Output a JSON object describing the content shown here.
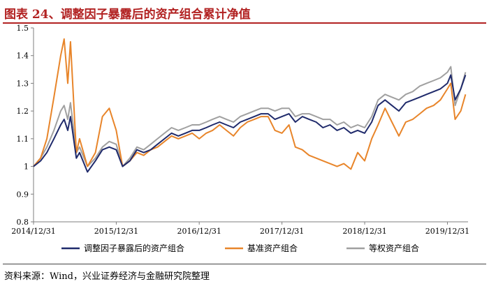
{
  "title": "图表 24、调整因子暴露后的资产组合累计净值",
  "source": "资料来源：Wind，兴业证券经济与金融研究院整理",
  "chart_data": {
    "type": "line",
    "ylim": [
      0.8,
      1.5
    ],
    "yticks": [
      "0.8",
      "0.9",
      "1",
      "1.1",
      "1.2",
      "1.3",
      "1.4",
      "1.5"
    ],
    "xlim": [
      "2014-12-31",
      "2020-03-31"
    ],
    "xticks": [
      {
        "date": "2014-12-31",
        "label": "2014/12/31"
      },
      {
        "date": "2015-12-31",
        "label": "2015/12/31"
      },
      {
        "date": "2016-12-31",
        "label": "2016/12/31"
      },
      {
        "date": "2017-12-31",
        "label": "2017/12/31"
      },
      {
        "date": "2018-12-31",
        "label": "2018/12/31"
      },
      {
        "date": "2019-12-31",
        "label": "2019/12/31"
      }
    ],
    "grid": false,
    "legend_position": "bottom",
    "series": [
      {
        "name": "调整因子暴露后的资产组合",
        "color": "#1f2a6b",
        "x": [
          "2014-12-31",
          "2015-01-31",
          "2015-02-28",
          "2015-03-31",
          "2015-04-30",
          "2015-05-15",
          "2015-05-31",
          "2015-06-12",
          "2015-07-08",
          "2015-07-22",
          "2015-08-26",
          "2015-09-30",
          "2015-10-31",
          "2015-11-30",
          "2015-12-31",
          "2016-01-28",
          "2016-02-29",
          "2016-03-31",
          "2016-04-30",
          "2016-05-31",
          "2016-06-30",
          "2016-07-31",
          "2016-08-31",
          "2016-09-30",
          "2016-10-31",
          "2016-11-30",
          "2016-12-31",
          "2017-01-31",
          "2017-02-28",
          "2017-03-31",
          "2017-04-30",
          "2017-05-31",
          "2017-06-30",
          "2017-07-31",
          "2017-08-31",
          "2017-09-30",
          "2017-10-31",
          "2017-11-30",
          "2017-12-31",
          "2018-01-31",
          "2018-02-28",
          "2018-03-31",
          "2018-04-30",
          "2018-05-31",
          "2018-06-30",
          "2018-07-31",
          "2018-08-31",
          "2018-09-30",
          "2018-10-31",
          "2018-11-30",
          "2018-12-31",
          "2019-01-31",
          "2019-02-28",
          "2019-03-31",
          "2019-04-30",
          "2019-05-31",
          "2019-06-30",
          "2019-07-31",
          "2019-08-31",
          "2019-09-30",
          "2019-10-31",
          "2019-11-30",
          "2019-12-31",
          "2020-01-15",
          "2020-02-03",
          "2020-02-28",
          "2020-03-20"
        ],
        "values": [
          1.0,
          1.02,
          1.05,
          1.1,
          1.15,
          1.17,
          1.13,
          1.18,
          1.03,
          1.05,
          0.98,
          1.02,
          1.06,
          1.07,
          1.06,
          1.0,
          1.02,
          1.06,
          1.05,
          1.06,
          1.08,
          1.1,
          1.12,
          1.11,
          1.12,
          1.13,
          1.13,
          1.14,
          1.15,
          1.16,
          1.15,
          1.14,
          1.16,
          1.17,
          1.18,
          1.19,
          1.19,
          1.17,
          1.18,
          1.19,
          1.16,
          1.18,
          1.17,
          1.16,
          1.14,
          1.15,
          1.13,
          1.14,
          1.12,
          1.13,
          1.12,
          1.16,
          1.22,
          1.24,
          1.22,
          1.2,
          1.23,
          1.24,
          1.25,
          1.26,
          1.27,
          1.28,
          1.3,
          1.33,
          1.24,
          1.28,
          1.33
        ]
      },
      {
        "name": "基准资产组合",
        "color": "#e8852a",
        "x": [
          "2014-12-31",
          "2015-01-31",
          "2015-02-28",
          "2015-03-31",
          "2015-04-30",
          "2015-05-15",
          "2015-05-31",
          "2015-06-12",
          "2015-07-08",
          "2015-07-22",
          "2015-08-26",
          "2015-09-30",
          "2015-10-31",
          "2015-11-30",
          "2015-12-31",
          "2016-01-28",
          "2016-02-29",
          "2016-03-31",
          "2016-04-30",
          "2016-05-31",
          "2016-06-30",
          "2016-07-31",
          "2016-08-31",
          "2016-09-30",
          "2016-10-31",
          "2016-11-30",
          "2016-12-31",
          "2017-01-31",
          "2017-02-28",
          "2017-03-31",
          "2017-04-30",
          "2017-05-31",
          "2017-06-30",
          "2017-07-31",
          "2017-08-31",
          "2017-09-30",
          "2017-10-31",
          "2017-11-30",
          "2017-12-31",
          "2018-01-31",
          "2018-02-28",
          "2018-03-31",
          "2018-04-30",
          "2018-05-31",
          "2018-06-30",
          "2018-07-31",
          "2018-08-31",
          "2018-09-30",
          "2018-10-31",
          "2018-11-30",
          "2018-12-31",
          "2019-01-31",
          "2019-02-28",
          "2019-03-31",
          "2019-04-30",
          "2019-05-31",
          "2019-06-30",
          "2019-07-31",
          "2019-08-31",
          "2019-09-30",
          "2019-10-31",
          "2019-11-30",
          "2019-12-31",
          "2020-01-15",
          "2020-02-03",
          "2020-02-28",
          "2020-03-20"
        ],
        "values": [
          1.0,
          1.03,
          1.1,
          1.25,
          1.4,
          1.46,
          1.3,
          1.45,
          1.05,
          1.1,
          1.0,
          1.05,
          1.18,
          1.21,
          1.13,
          1.0,
          1.02,
          1.05,
          1.04,
          1.06,
          1.07,
          1.09,
          1.11,
          1.1,
          1.11,
          1.12,
          1.1,
          1.12,
          1.13,
          1.15,
          1.13,
          1.11,
          1.14,
          1.16,
          1.17,
          1.18,
          1.18,
          1.13,
          1.12,
          1.15,
          1.07,
          1.06,
          1.04,
          1.03,
          1.02,
          1.01,
          1.0,
          1.01,
          0.99,
          1.05,
          1.02,
          1.1,
          1.15,
          1.21,
          1.16,
          1.11,
          1.16,
          1.17,
          1.19,
          1.21,
          1.22,
          1.24,
          1.28,
          1.3,
          1.17,
          1.2,
          1.26
        ]
      },
      {
        "name": "等权资产组合",
        "color": "#a0a0a0",
        "x": [
          "2014-12-31",
          "2015-01-31",
          "2015-02-28",
          "2015-03-31",
          "2015-04-30",
          "2015-05-15",
          "2015-05-31",
          "2015-06-12",
          "2015-07-08",
          "2015-07-22",
          "2015-08-26",
          "2015-09-30",
          "2015-10-31",
          "2015-11-30",
          "2015-12-31",
          "2016-01-28",
          "2016-02-29",
          "2016-03-31",
          "2016-04-30",
          "2016-05-31",
          "2016-06-30",
          "2016-07-31",
          "2016-08-31",
          "2016-09-30",
          "2016-10-31",
          "2016-11-30",
          "2016-12-31",
          "2017-01-31",
          "2017-02-28",
          "2017-03-31",
          "2017-04-30",
          "2017-05-31",
          "2017-06-30",
          "2017-07-31",
          "2017-08-31",
          "2017-09-30",
          "2017-10-31",
          "2017-11-30",
          "2017-12-31",
          "2018-01-31",
          "2018-02-28",
          "2018-03-31",
          "2018-04-30",
          "2018-05-31",
          "2018-06-30",
          "2018-07-31",
          "2018-08-31",
          "2018-09-30",
          "2018-10-31",
          "2018-11-30",
          "2018-12-31",
          "2019-01-31",
          "2019-02-28",
          "2019-03-31",
          "2019-04-30",
          "2019-05-31",
          "2019-06-30",
          "2019-07-31",
          "2019-08-31",
          "2019-09-30",
          "2019-10-31",
          "2019-11-30",
          "2019-12-31",
          "2020-01-15",
          "2020-02-03",
          "2020-02-28",
          "2020-03-20"
        ],
        "values": [
          1.0,
          1.03,
          1.07,
          1.13,
          1.2,
          1.22,
          1.17,
          1.23,
          1.05,
          1.07,
          1.0,
          1.03,
          1.07,
          1.09,
          1.08,
          1.0,
          1.03,
          1.07,
          1.06,
          1.08,
          1.1,
          1.12,
          1.14,
          1.13,
          1.14,
          1.15,
          1.15,
          1.16,
          1.17,
          1.18,
          1.17,
          1.16,
          1.18,
          1.19,
          1.2,
          1.21,
          1.21,
          1.2,
          1.21,
          1.21,
          1.18,
          1.19,
          1.19,
          1.18,
          1.17,
          1.17,
          1.15,
          1.16,
          1.14,
          1.15,
          1.14,
          1.18,
          1.24,
          1.26,
          1.25,
          1.24,
          1.26,
          1.27,
          1.29,
          1.3,
          1.31,
          1.32,
          1.34,
          1.36,
          1.22,
          1.28,
          1.34
        ]
      }
    ]
  }
}
